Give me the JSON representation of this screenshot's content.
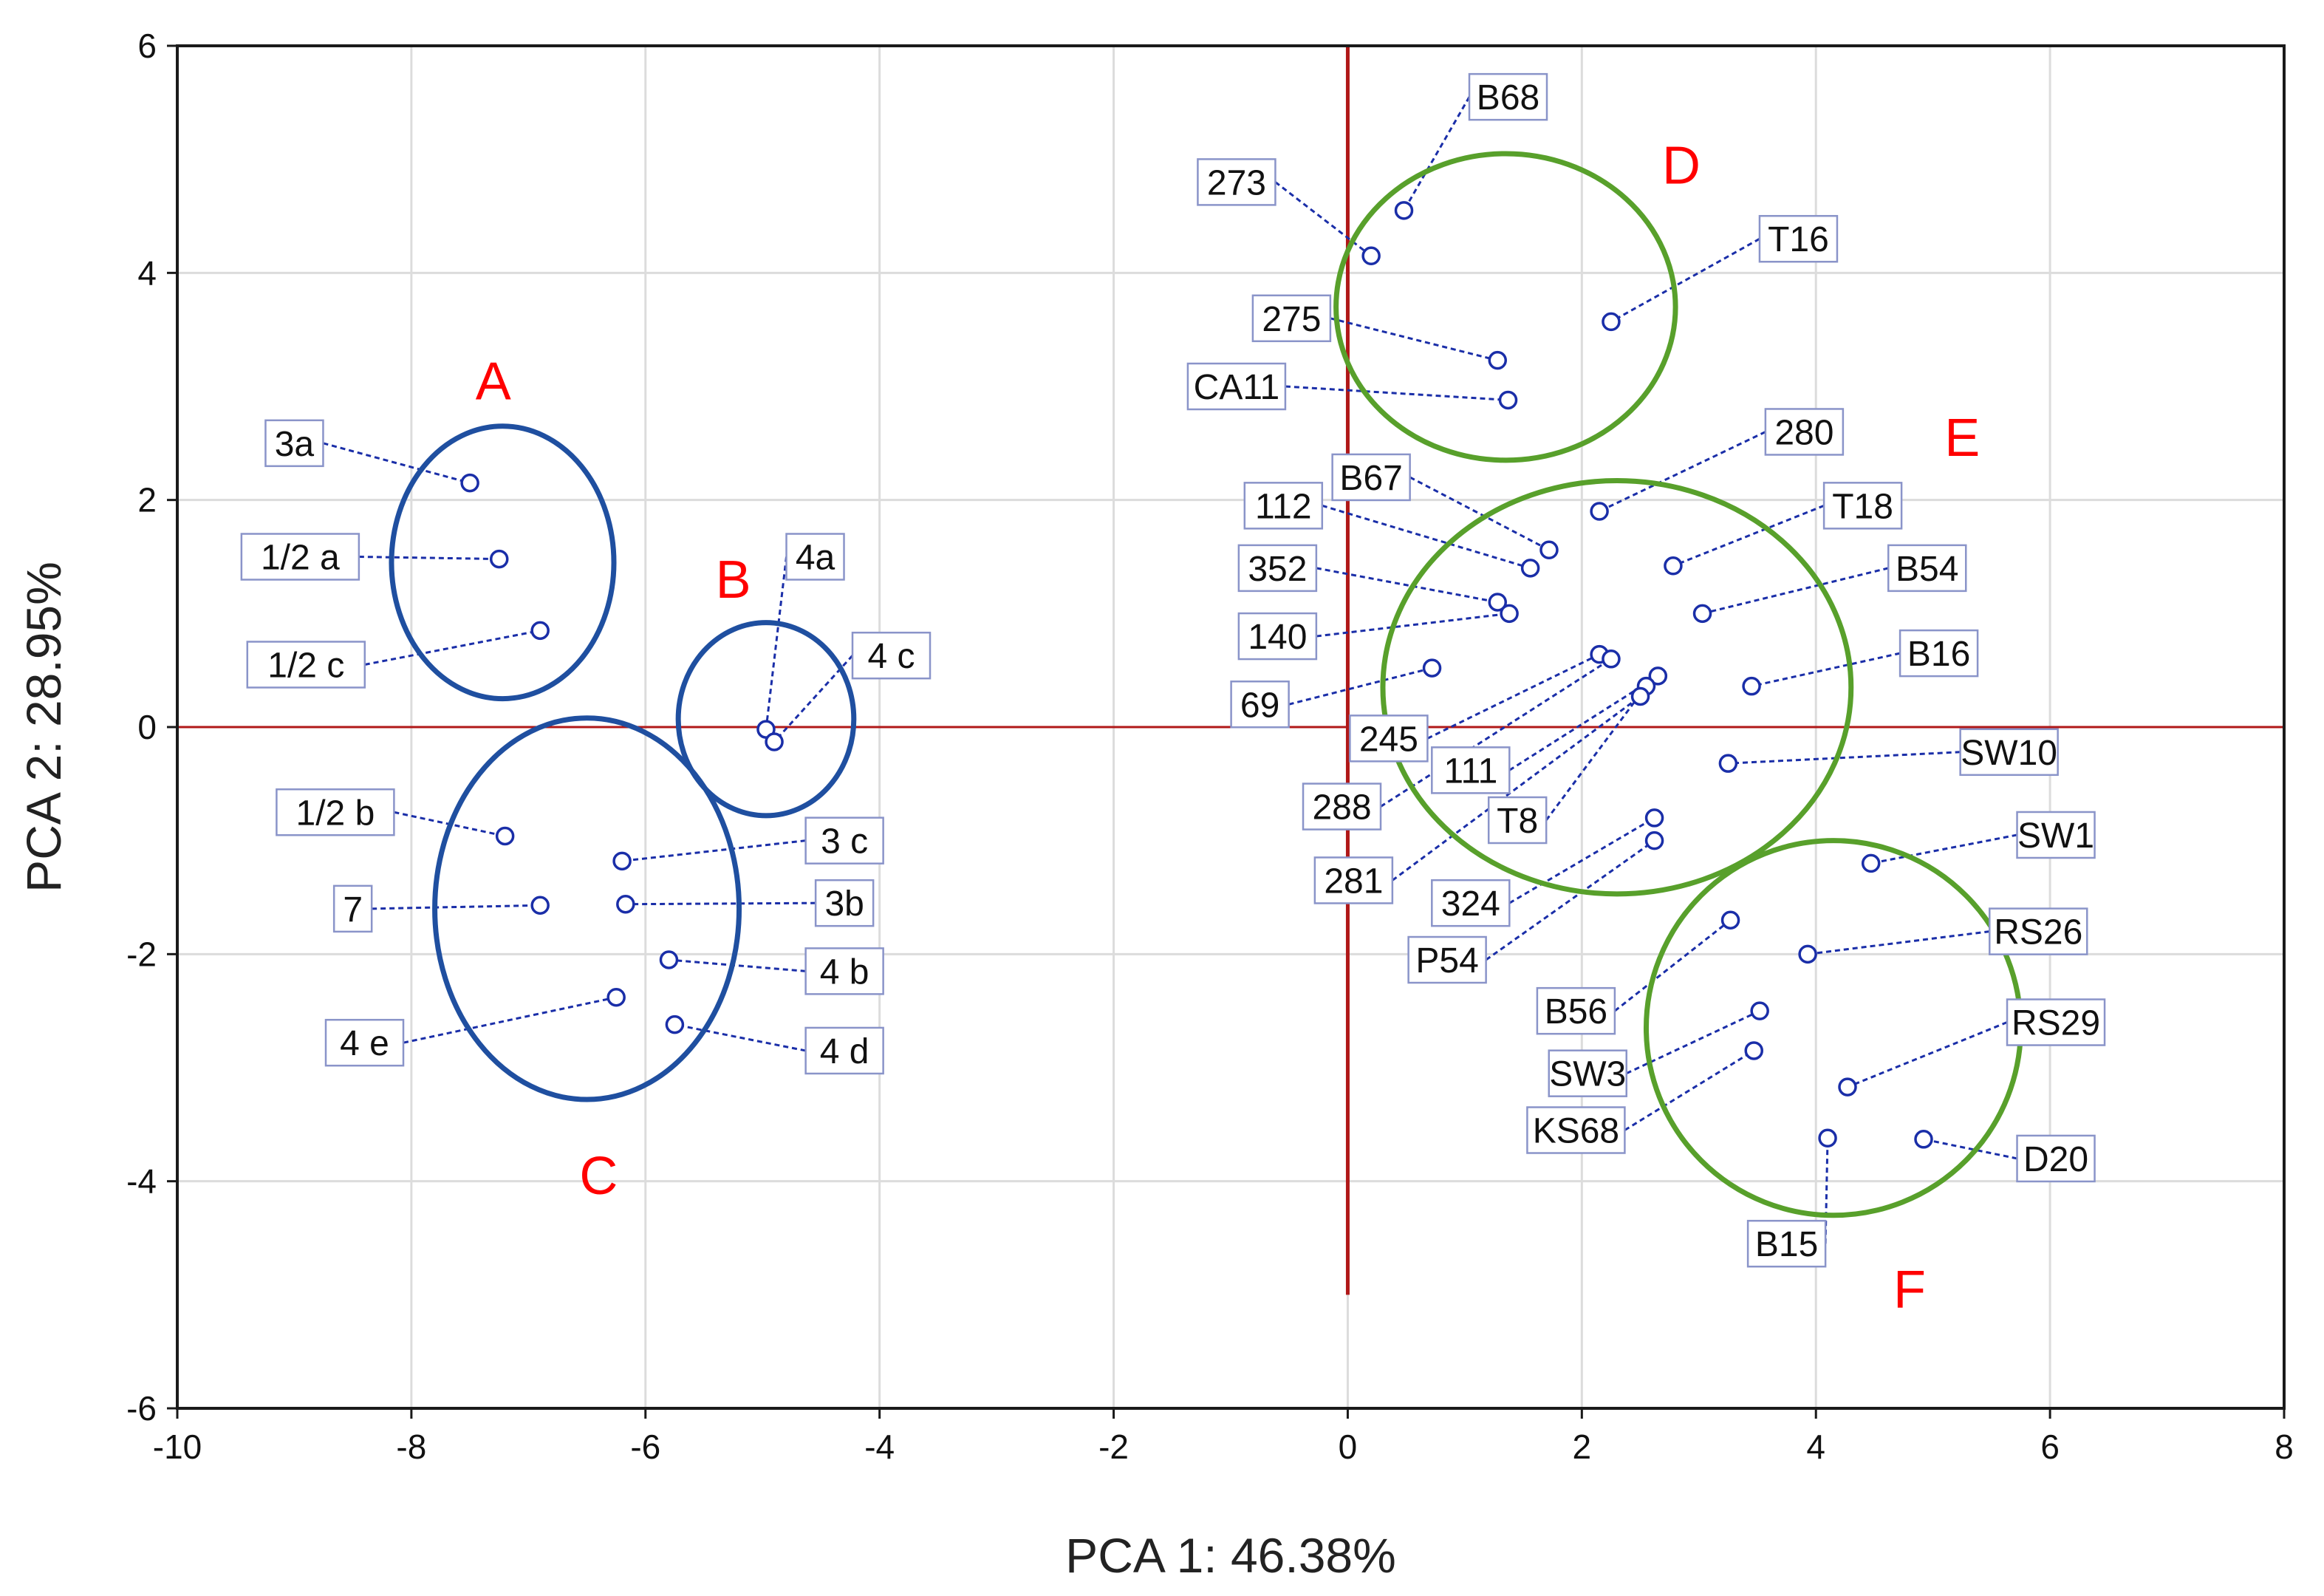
{
  "chart_data": {
    "type": "scatter",
    "xlabel": "PCA 1: 46.38%",
    "ylabel": "PCA 2:  28.95%",
    "xlim": [
      -10,
      8
    ],
    "ylim": [
      -6,
      6
    ],
    "xticks": [
      -10,
      -8,
      -6,
      -4,
      -2,
      0,
      2,
      4,
      6,
      8
    ],
    "yticks": [
      -6,
      -4,
      -2,
      0,
      2,
      4,
      6
    ],
    "grid": true,
    "points": [
      {
        "label": "3a",
        "x": -7.5,
        "y": 2.15,
        "lx": -9.0,
        "ly": 2.5
      },
      {
        "label": "1/2 a",
        "x": -7.25,
        "y": 1.48,
        "lx": -8.95,
        "ly": 1.5
      },
      {
        "label": "1/2 c",
        "x": -6.9,
        "y": 0.85,
        "lx": -8.9,
        "ly": 0.55
      },
      {
        "label": "4a",
        "x": -4.97,
        "y": -0.02,
        "lx": -4.55,
        "ly": 1.5
      },
      {
        "label": "4 c",
        "x": -4.9,
        "y": -0.13,
        "lx": -3.9,
        "ly": 0.63
      },
      {
        "label": "1/2 b",
        "x": -7.2,
        "y": -0.96,
        "lx": -8.65,
        "ly": -0.75
      },
      {
        "label": "3 c",
        "x": -6.2,
        "y": -1.18,
        "lx": -4.3,
        "ly": -1.0
      },
      {
        "label": "7",
        "x": -6.9,
        "y": -1.57,
        "lx": -8.5,
        "ly": -1.6
      },
      {
        "label": "3b",
        "x": -6.17,
        "y": -1.56,
        "lx": -4.3,
        "ly": -1.55
      },
      {
        "label": "4 b",
        "x": -5.8,
        "y": -2.05,
        "lx": -4.3,
        "ly": -2.15
      },
      {
        "label": "4 e",
        "x": -6.25,
        "y": -2.38,
        "lx": -8.4,
        "ly": -2.78
      },
      {
        "label": "4 d",
        "x": -5.75,
        "y": -2.62,
        "lx": -4.3,
        "ly": -2.85
      },
      {
        "label": "B68",
        "x": 0.48,
        "y": 4.55,
        "lx": 1.37,
        "ly": 5.55
      },
      {
        "label": "273",
        "x": 0.2,
        "y": 4.15,
        "lx": -0.95,
        "ly": 4.8
      },
      {
        "label": "T16",
        "x": 2.25,
        "y": 3.57,
        "lx": 3.85,
        "ly": 4.3
      },
      {
        "label": "275",
        "x": 1.28,
        "y": 3.23,
        "lx": -0.48,
        "ly": 3.6
      },
      {
        "label": "CA11",
        "x": 1.37,
        "y": 2.88,
        "lx": -0.95,
        "ly": 3.0
      },
      {
        "label": "280",
        "x": 2.15,
        "y": 1.9,
        "lx": 3.9,
        "ly": 2.6
      },
      {
        "label": "B67",
        "x": 1.72,
        "y": 1.56,
        "lx": 0.2,
        "ly": 2.2
      },
      {
        "label": "112",
        "x": 1.56,
        "y": 1.4,
        "lx": -0.55,
        "ly": 1.95
      },
      {
        "label": "T18",
        "x": 2.78,
        "y": 1.42,
        "lx": 4.4,
        "ly": 1.95
      },
      {
        "label": "352",
        "x": 1.28,
        "y": 1.1,
        "lx": -0.6,
        "ly": 1.4
      },
      {
        "label": "B54",
        "x": 3.03,
        "y": 1.0,
        "lx": 4.95,
        "ly": 1.4
      },
      {
        "label": "140",
        "x": 1.38,
        "y": 1.0,
        "lx": -0.6,
        "ly": 0.8
      },
      {
        "label": "B16",
        "x": 3.45,
        "y": 0.36,
        "lx": 5.05,
        "ly": 0.65
      },
      {
        "label": "69",
        "x": 0.72,
        "y": 0.52,
        "lx": -0.75,
        "ly": 0.2
      },
      {
        "label": "245",
        "x": 2.15,
        "y": 0.64,
        "lx": 0.35,
        "ly": -0.1
      },
      {
        "label": "288",
        "x": 2.25,
        "y": 0.6,
        "lx": -0.05,
        "ly": -0.7
      },
      {
        "label": "111",
        "x": 2.65,
        "y": 0.45,
        "lx": 1.05,
        "ly": -0.38
      },
      {
        "label": "T8",
        "x": 2.55,
        "y": 0.36,
        "lx": 1.45,
        "ly": -0.82
      },
      {
        "label": "281",
        "x": 2.5,
        "y": 0.27,
        "lx": 0.05,
        "ly": -1.35
      },
      {
        "label": "SW10",
        "x": 3.25,
        "y": -0.32,
        "lx": 5.65,
        "ly": -0.22
      },
      {
        "label": "324",
        "x": 2.62,
        "y": -0.8,
        "lx": 1.05,
        "ly": -1.55
      },
      {
        "label": "P54",
        "x": 2.62,
        "y": -1.0,
        "lx": 0.85,
        "ly": -2.05
      },
      {
        "label": "SW1",
        "x": 4.47,
        "y": -1.2,
        "lx": 6.05,
        "ly": -0.95
      },
      {
        "label": "B56",
        "x": 3.27,
        "y": -1.7,
        "lx": 1.95,
        "ly": -2.5
      },
      {
        "label": "RS26",
        "x": 3.93,
        "y": -2.0,
        "lx": 5.9,
        "ly": -1.8
      },
      {
        "label": "RS29",
        "x": 4.27,
        "y": -3.17,
        "lx": 6.05,
        "ly": -2.6
      },
      {
        "label": "SW3",
        "x": 3.52,
        "y": -2.5,
        "lx": 2.05,
        "ly": -3.05
      },
      {
        "label": "KS68",
        "x": 3.47,
        "y": -2.85,
        "lx": 1.95,
        "ly": -3.55
      },
      {
        "label": "D20",
        "x": 4.92,
        "y": -3.63,
        "lx": 6.05,
        "ly": -3.8
      },
      {
        "label": "B15",
        "x": 4.1,
        "y": -3.62,
        "lx": 3.75,
        "ly": -4.55
      }
    ],
    "groups": [
      {
        "label": "A",
        "color": "#1f4fa0",
        "cx": -7.22,
        "cy": 1.45,
        "rx": 0.95,
        "ry": 1.2,
        "lx": -7.3,
        "ly": 3.05
      },
      {
        "label": "B",
        "color": "#1f4fa0",
        "cx": -4.97,
        "cy": 0.07,
        "rx": 0.75,
        "ry": 0.85,
        "lx": -5.25,
        "ly": 1.3
      },
      {
        "label": "C",
        "color": "#1f4fa0",
        "cx": -6.5,
        "cy": -1.6,
        "rx": 1.3,
        "ry": 1.68,
        "lx": -6.4,
        "ly": -3.95
      },
      {
        "label": "D",
        "color": "#58a02b",
        "cx": 1.35,
        "cy": 3.7,
        "rx": 1.45,
        "ry": 1.35,
        "lx": 2.85,
        "ly": 4.95
      },
      {
        "label": "E",
        "color": "#58a02b",
        "cx": 2.3,
        "cy": 0.35,
        "rx": 2.0,
        "ry": 1.82,
        "lx": 5.25,
        "ly": 2.55
      },
      {
        "label": "F",
        "color": "#58a02b",
        "cx": 4.15,
        "cy": -2.65,
        "rx": 1.6,
        "ry": 1.65,
        "lx": 4.8,
        "ly": -4.95
      }
    ],
    "reference_lines": {
      "x": 0,
      "y": 0,
      "vertical_from": -5,
      "vertical_to": 6,
      "color": "#b01818"
    }
  }
}
